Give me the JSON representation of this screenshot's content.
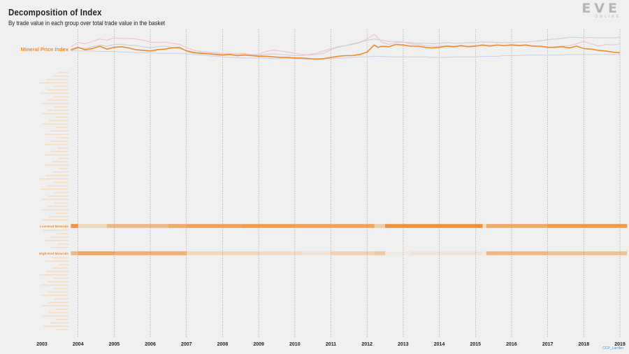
{
  "header": {
    "title": "Decomposition of Index",
    "subtitle": "By trade value in each group over total trade value in the basket"
  },
  "logo": {
    "mark": "EVE",
    "sub": "ONLINE"
  },
  "credit": "CCP_Larrikin",
  "colors": {
    "accent": "#f08a2c",
    "background": "#f0f0f0",
    "pink": "#f2c6c6",
    "blue": "#cdd3e4",
    "gray": "#cfd1d4",
    "faint_label": "#f7dcc2"
  },
  "chart_data": [
    {
      "type": "line",
      "title": "",
      "label": "Mineral Price Index",
      "x": [
        2003.8,
        2004.0,
        2004.2,
        2004.4,
        2004.6,
        2004.8,
        2005.0,
        2005.2,
        2005.4,
        2005.6,
        2005.8,
        2006.0,
        2006.2,
        2006.4,
        2006.6,
        2006.8,
        2007.0,
        2007.2,
        2007.4,
        2007.6,
        2007.8,
        2008.0,
        2008.2,
        2008.4,
        2008.6,
        2008.8,
        2009.0,
        2009.2,
        2009.4,
        2009.6,
        2009.8,
        2010.0,
        2010.2,
        2010.4,
        2010.6,
        2010.8,
        2011.0,
        2011.2,
        2011.4,
        2011.6,
        2011.8,
        2012.0,
        2012.2,
        2012.3,
        2012.4,
        2012.6,
        2012.8,
        2013.0,
        2013.2,
        2013.4,
        2013.6,
        2013.8,
        2014.0,
        2014.2,
        2014.4,
        2014.6,
        2014.8,
        2015.0,
        2015.2,
        2015.4,
        2015.6,
        2015.8,
        2016.0,
        2016.2,
        2016.4,
        2016.6,
        2016.8,
        2017.0,
        2017.2,
        2017.4,
        2017.6,
        2017.8,
        2018.0,
        2018.2,
        2018.4,
        2018.6,
        2018.8,
        2019.0
      ],
      "series": [
        {
          "values": [
            60,
            64,
            60,
            62,
            66,
            61,
            64,
            65,
            63,
            60,
            59,
            58,
            60,
            61,
            63,
            64,
            58,
            55,
            54,
            53,
            52,
            51,
            52,
            50,
            51,
            50,
            49,
            49,
            48,
            47,
            47,
            46,
            46,
            45,
            44,
            45,
            47,
            49,
            50,
            50,
            52,
            56,
            68,
            64,
            66,
            65,
            69,
            68,
            66,
            66,
            64,
            63,
            64,
            66,
            65,
            67,
            65,
            66,
            68,
            66,
            68,
            67,
            68,
            67,
            68,
            66,
            66,
            64,
            64,
            65,
            63,
            66,
            62,
            61,
            59,
            58,
            56,
            55
          ]
        },
        {
          "values": [
            65,
            72,
            70,
            74,
            78,
            76,
            80,
            79,
            79,
            78,
            76,
            73,
            72,
            73,
            71,
            69,
            64,
            59,
            57,
            56,
            55,
            54,
            54,
            53,
            54,
            52,
            52,
            57,
            59,
            58,
            56,
            54,
            52,
            51,
            52,
            54,
            60,
            64,
            67,
            70,
            73,
            78,
            86,
            80,
            73,
            69,
            72,
            73,
            70,
            69,
            67,
            66,
            66,
            67,
            66,
            66,
            66,
            67,
            67,
            68,
            68,
            67,
            69,
            68,
            67,
            66,
            65,
            64,
            65,
            66,
            67,
            70,
            74,
            70,
            66,
            69,
            68,
            70
          ]
        },
        {
          "values": [
            58,
            63,
            62,
            65,
            68,
            66,
            69,
            69,
            68,
            67,
            65,
            63,
            65,
            66,
            64,
            62,
            59,
            56,
            55,
            54,
            53,
            52,
            52,
            51,
            52,
            51,
            50,
            52,
            53,
            52,
            51,
            50,
            50,
            52,
            54,
            58,
            62,
            65,
            67,
            69,
            72,
            76,
            78,
            77,
            76,
            74,
            74,
            73,
            72,
            71,
            71,
            70,
            71,
            72,
            71,
            71,
            72,
            72,
            73,
            73,
            72,
            72,
            72,
            73,
            73,
            74,
            75,
            77,
            78,
            79,
            81,
            81,
            80,
            81,
            80,
            80,
            80,
            81
          ]
        },
        {
          "values": [
            58,
            58,
            58,
            58,
            57,
            57,
            57,
            56,
            56,
            55,
            55,
            55,
            54,
            54,
            54,
            54,
            53,
            52,
            51,
            50,
            49,
            48,
            47,
            47,
            46,
            46,
            46,
            46,
            45,
            45,
            45,
            45,
            44,
            44,
            45,
            45,
            45,
            46,
            46,
            47,
            48,
            48,
            49,
            49,
            49,
            48,
            48,
            48,
            48,
            48,
            48,
            47,
            47,
            47,
            48,
            48,
            48,
            48,
            49,
            49,
            49,
            50,
            50,
            50,
            51,
            51,
            51,
            51,
            51,
            51,
            52,
            52,
            52,
            52,
            52,
            52,
            52,
            52
          ]
        }
      ],
      "ylim": [
        40,
        92
      ]
    },
    {
      "type": "heatmap",
      "xlabel": "",
      "ylabel": "",
      "x_ticks": [
        "2003",
        "2004",
        "2005",
        "2006",
        "2007",
        "2008",
        "2009",
        "2010",
        "2011",
        "2012",
        "2013",
        "2014",
        "2015",
        "2016",
        "2017",
        "2018",
        "2019"
      ],
      "rows": [
        {
          "label": "Low-End Minerals",
          "segments": [
            {
              "from": 2003.8,
              "to": 2004.0,
              "v": 0.9
            },
            {
              "from": 2004.0,
              "to": 2004.8,
              "v": 0.25
            },
            {
              "from": 2004.8,
              "to": 2006.5,
              "v": 0.55
            },
            {
              "from": 2006.5,
              "to": 2007.0,
              "v": 0.7
            },
            {
              "from": 2007.0,
              "to": 2008.5,
              "v": 0.78
            },
            {
              "from": 2008.5,
              "to": 2010.0,
              "v": 0.82
            },
            {
              "from": 2010.0,
              "to": 2012.2,
              "v": 0.75
            },
            {
              "from": 2012.2,
              "to": 2012.5,
              "v": 0.35
            },
            {
              "from": 2012.5,
              "to": 2015.2,
              "v": 0.92
            },
            {
              "from": 2015.2,
              "to": 2015.3,
              "v": 0.2
            },
            {
              "from": 2015.3,
              "to": 2017.0,
              "v": 0.7
            },
            {
              "from": 2017.0,
              "to": 2019.2,
              "v": 0.85
            }
          ]
        },
        {
          "label": "High-End Minerals",
          "segments": [
            {
              "from": 2003.8,
              "to": 2004.0,
              "v": 0.55
            },
            {
              "from": 2004.0,
              "to": 2005.0,
              "v": 0.72
            },
            {
              "from": 2005.0,
              "to": 2007.0,
              "v": 0.62
            },
            {
              "from": 2007.0,
              "to": 2009.0,
              "v": 0.25
            },
            {
              "from": 2009.0,
              "to": 2010.2,
              "v": 0.2
            },
            {
              "from": 2010.2,
              "to": 2011.0,
              "v": 0.12
            },
            {
              "from": 2011.0,
              "to": 2012.2,
              "v": 0.3
            },
            {
              "from": 2012.2,
              "to": 2012.5,
              "v": 0.4
            },
            {
              "from": 2012.5,
              "to": 2013.2,
              "v": 0.05
            },
            {
              "from": 2013.2,
              "to": 2015.2,
              "v": 0.12
            },
            {
              "from": 2015.2,
              "to": 2015.3,
              "v": 0.0
            },
            {
              "from": 2015.3,
              "to": 2017.0,
              "v": 0.55
            },
            {
              "from": 2017.0,
              "to": 2019.2,
              "v": 0.45
            }
          ]
        }
      ],
      "grid": true
    }
  ]
}
